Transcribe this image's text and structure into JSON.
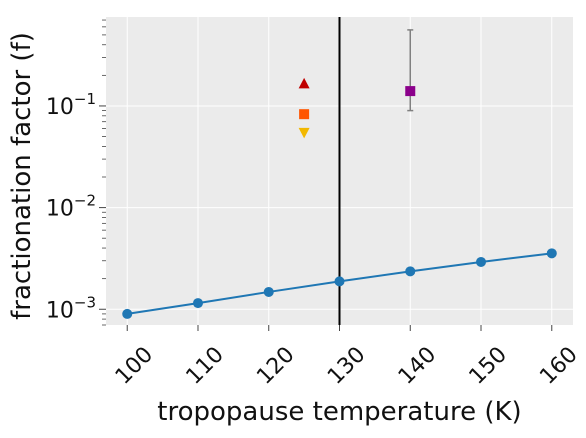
{
  "chart_data": {
    "type": "scatter",
    "title": "",
    "xlabel": "tropopause temperature (K)",
    "ylabel": "fractionation factor (f)",
    "xlim": [
      97,
      163
    ],
    "ylim": [
      0.0007,
      0.75
    ],
    "yscale": "log",
    "grid": true,
    "background": "#ebebeb",
    "x_ticks": [
      100,
      110,
      120,
      130,
      140,
      150,
      160
    ],
    "x_tick_labels": [
      "100",
      "110",
      "120",
      "130",
      "140",
      "150",
      "160"
    ],
    "y_ticks": [
      0.001,
      0.01,
      0.1
    ],
    "y_tick_base_labels": [
      "10",
      "10",
      "10"
    ],
    "y_tick_exponents": [
      "−3",
      "−2",
      "−1"
    ],
    "vline": {
      "x": 130,
      "color": "#000000"
    },
    "series": [
      {
        "kind": "line",
        "color": "#1f77b4",
        "marker": "circle",
        "x": [
          100,
          110,
          120,
          130,
          140,
          150,
          160
        ],
        "y": [
          0.0009,
          0.00115,
          0.00148,
          0.00188,
          0.00236,
          0.00292,
          0.00355
        ]
      },
      {
        "kind": "point",
        "color": "#c00000",
        "marker": "triangle-up",
        "x": [
          125
        ],
        "y": [
          0.165
        ]
      },
      {
        "kind": "point",
        "color": "#ff5500",
        "marker": "square",
        "x": [
          125
        ],
        "y": [
          0.083
        ]
      },
      {
        "kind": "point",
        "color": "#f2b800",
        "marker": "triangle-down",
        "x": [
          125
        ],
        "y": [
          0.055
        ]
      },
      {
        "kind": "point",
        "color": "#8b008b",
        "marker": "square",
        "x": [
          140
        ],
        "y": [
          0.14
        ],
        "yerr_low": 0.09,
        "yerr_high": 0.56,
        "errcolor": "#808080"
      }
    ]
  }
}
